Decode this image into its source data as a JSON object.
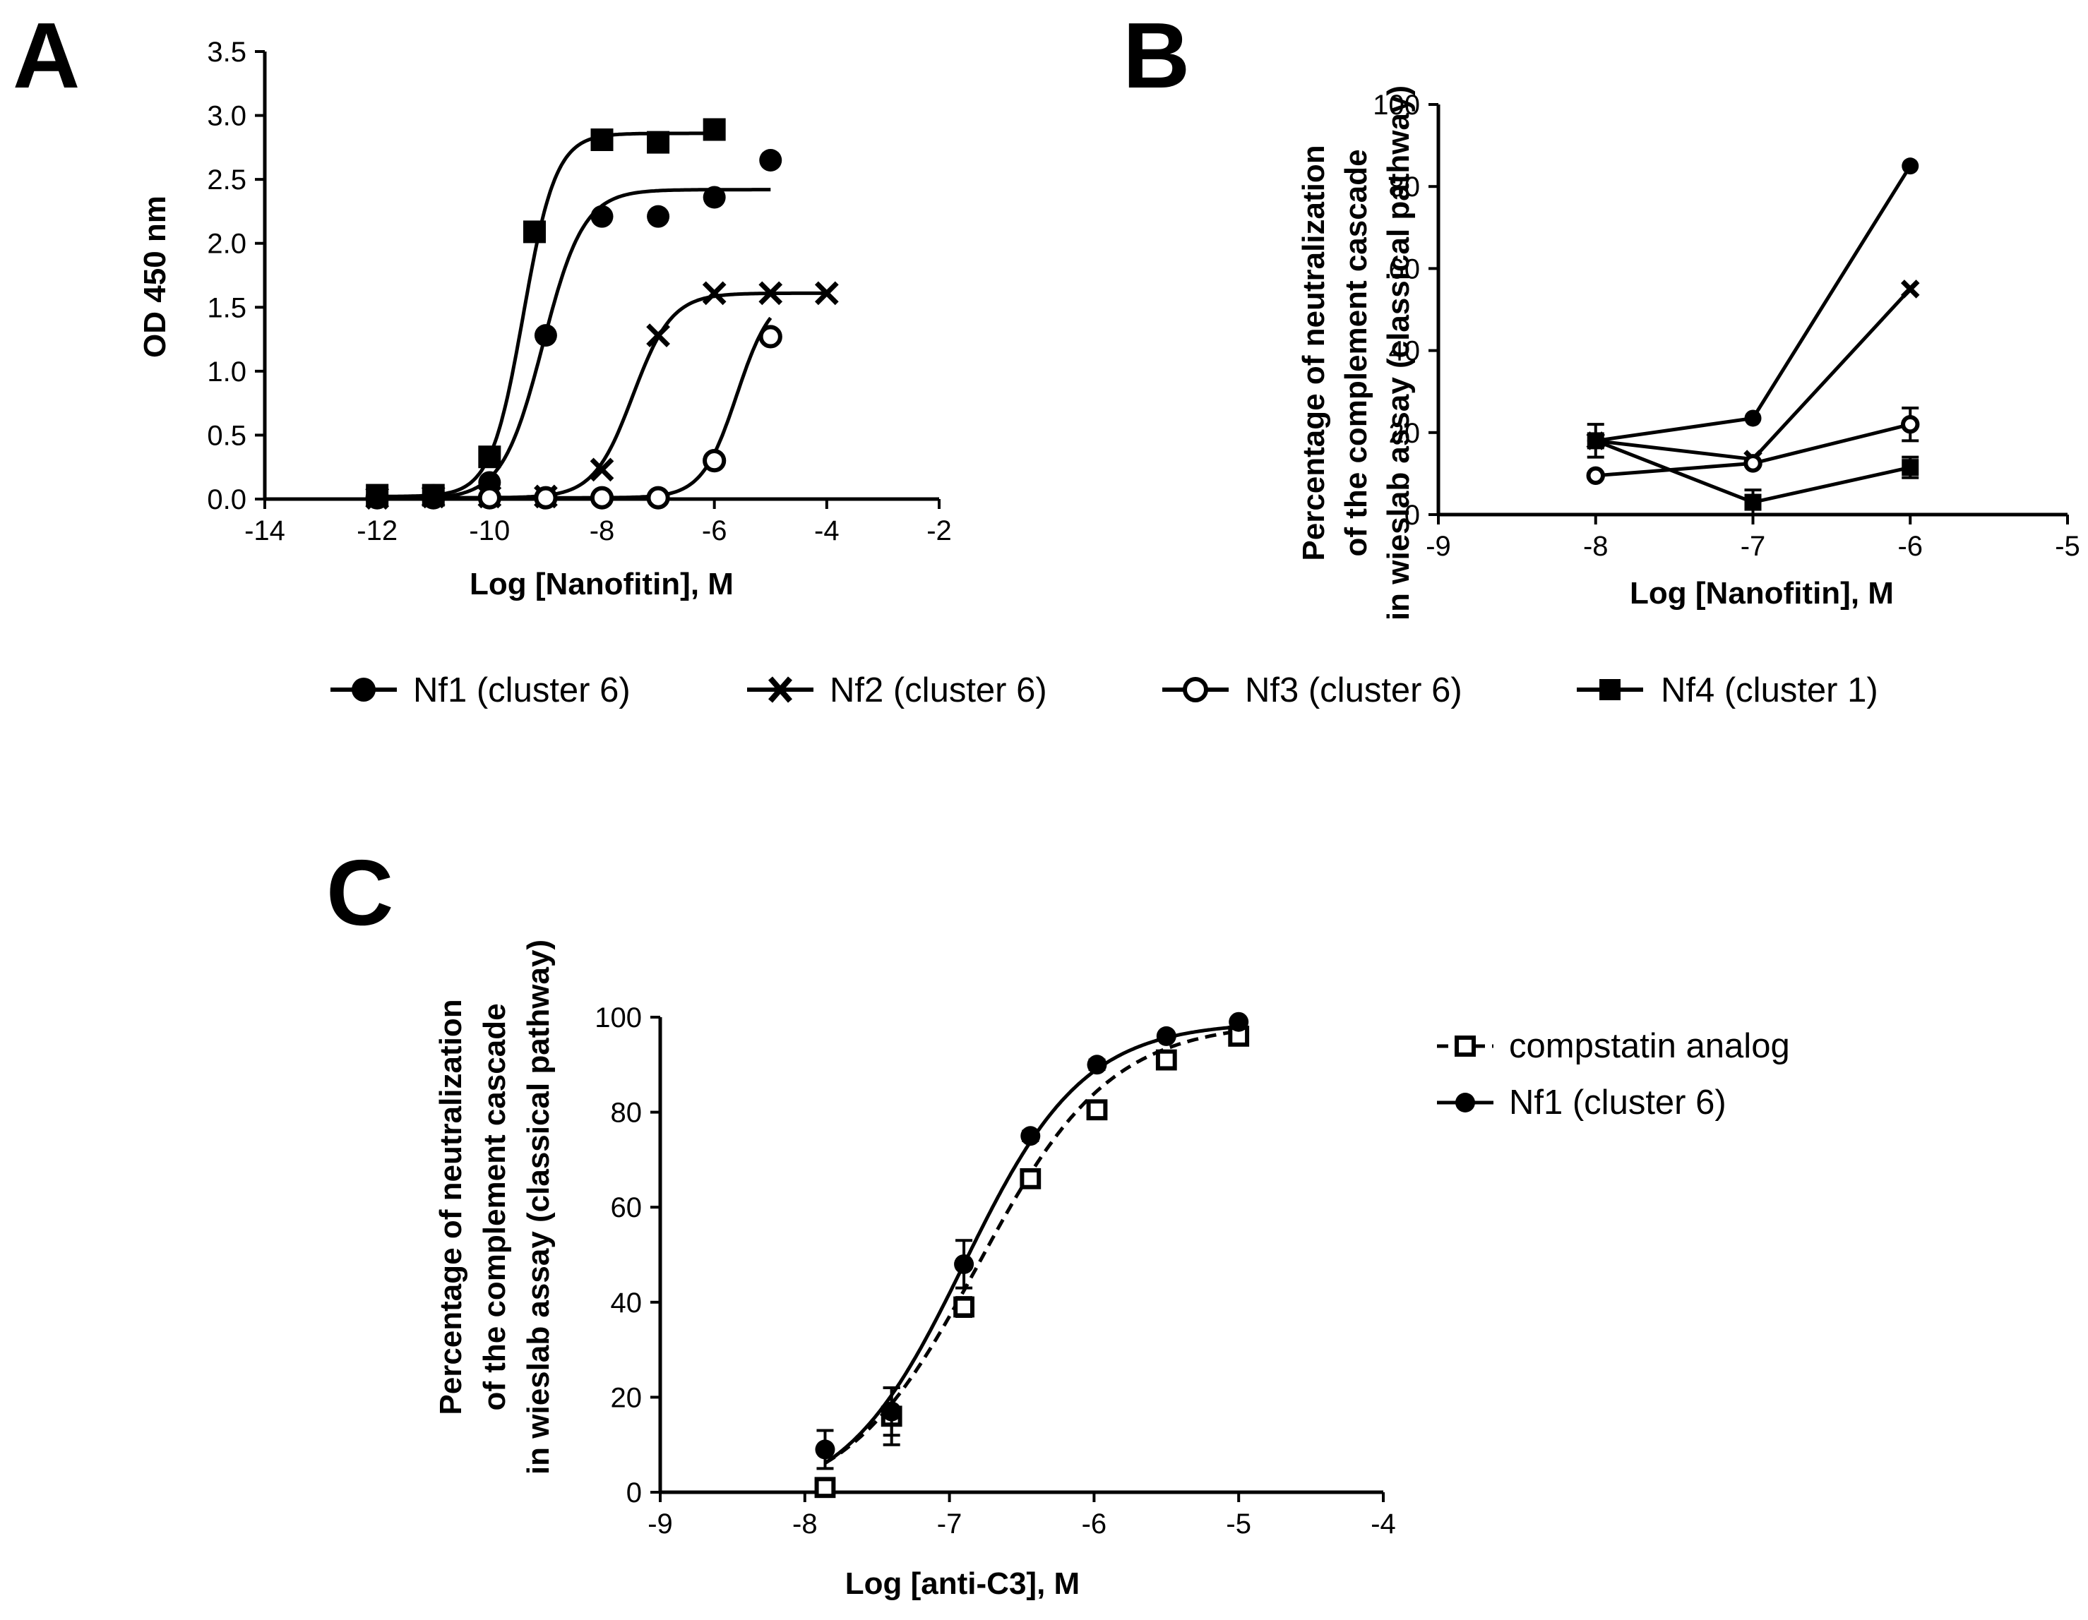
{
  "figure": {
    "panel_labels": [
      "A",
      "B",
      "C"
    ],
    "shared_legend": [
      {
        "label": "Nf1 (cluster 6)",
        "marker": "filled-circle"
      },
      {
        "label": "Nf2 (cluster 6)",
        "marker": "x-cross"
      },
      {
        "label": "Nf3 (cluster 6)",
        "marker": "open-circle"
      },
      {
        "label": "Nf4 (cluster 1)",
        "marker": "filled-square"
      }
    ]
  },
  "chart_data": [
    {
      "panel": "A",
      "type": "scatter",
      "fit": "sigmoidal-dose-response",
      "title": "",
      "xlabel": "Log [Nanofitin], M",
      "ylabel": "OD 450 nm",
      "xlim": [
        -14,
        -2
      ],
      "ylim": [
        0,
        3.5
      ],
      "xticks": [
        -14,
        -12,
        -10,
        -8,
        -6,
        -4,
        -2
      ],
      "yticks": [
        0.0,
        0.5,
        1.0,
        1.5,
        2.0,
        2.5,
        3.0,
        3.5
      ],
      "xtick_labels": [
        "-14",
        "-12",
        "-10",
        "-8",
        "-6",
        "-4",
        "-2"
      ],
      "ytick_labels": [
        "0.0",
        "0.5",
        "1.0",
        "1.5",
        "2.0",
        "2.5",
        "3.0",
        "3.5"
      ],
      "series": [
        {
          "name": "Nf1 (cluster 6)",
          "marker": "filled-circle",
          "x": [
            -12,
            -11,
            -10,
            -9,
            -8,
            -7,
            -6,
            -5
          ],
          "y": [
            0.02,
            0.03,
            0.13,
            1.28,
            2.21,
            2.21,
            2.36,
            2.65
          ],
          "fit_params": {
            "bottom": 0.0,
            "top": 2.42,
            "log_ec50": -9.05,
            "hill": 1.2,
            "x_range": [
              -12,
              -5
            ]
          }
        },
        {
          "name": "Nf2 (cluster 6)",
          "marker": "x-cross",
          "x": [
            -12,
            -11,
            -10,
            -9,
            -8,
            -7,
            -6,
            -5,
            -4
          ],
          "y": [
            0.01,
            0.02,
            0.02,
            0.02,
            0.23,
            1.28,
            1.61,
            1.61,
            1.61
          ],
          "fit_params": {
            "bottom": 0.01,
            "top": 1.61,
            "log_ec50": -7.45,
            "hill": 1.25,
            "x_range": [
              -12,
              -4
            ]
          }
        },
        {
          "name": "Nf3 (cluster 6)",
          "marker": "open-circle",
          "x": [
            -12,
            -11,
            -10,
            -9,
            -8,
            -7,
            -6,
            -5
          ],
          "y": [
            0.01,
            0.01,
            0.01,
            0.01,
            0.01,
            0.01,
            0.3,
            1.27
          ],
          "fit_params": {
            "bottom": 0.01,
            "top": 1.62,
            "log_ec50": -5.6,
            "hill": 1.4,
            "x_range": [
              -12,
              -5
            ]
          }
        },
        {
          "name": "Nf4 (cluster 1)",
          "marker": "filled-square",
          "x": [
            -12,
            -11,
            -10,
            -9.2,
            -8,
            -7,
            -6
          ],
          "y": [
            0.03,
            0.03,
            0.33,
            2.09,
            2.81,
            2.79,
            2.89
          ],
          "fit_params": {
            "bottom": 0.02,
            "top": 2.86,
            "log_ec50": -9.4,
            "hill": 1.5,
            "x_range": [
              -12,
              -6
            ]
          }
        }
      ]
    },
    {
      "panel": "B",
      "type": "line",
      "title": "",
      "xlabel": "Log [Nanofitin], M",
      "ylabel_lines": [
        "Percentage of neutralization",
        "of the complement cascade",
        "in wieslab assay (classical pathway)"
      ],
      "xlim": [
        -9,
        -5
      ],
      "ylim": [
        0,
        100
      ],
      "xticks": [
        -9,
        -8,
        -7,
        -6,
        -5
      ],
      "yticks": [
        0,
        20,
        40,
        60,
        80,
        100
      ],
      "xtick_labels": [
        "-9",
        "-8",
        "-7",
        "-6",
        "-5"
      ],
      "ytick_labels": [
        "0",
        "20",
        "40",
        "60",
        "80",
        "100"
      ],
      "series": [
        {
          "name": "Nf1 (cluster 6)",
          "marker": "filled-circle",
          "x": [
            -8,
            -7,
            -6
          ],
          "y": [
            18,
            23.5,
            85
          ],
          "err": [
            0,
            0,
            0
          ]
        },
        {
          "name": "Nf2 (cluster 6)",
          "marker": "x-cross",
          "x": [
            -8,
            -7,
            -6
          ],
          "y": [
            18,
            13.5,
            55
          ],
          "err": [
            0,
            0,
            0
          ]
        },
        {
          "name": "Nf3 (cluster 6)",
          "marker": "open-circle",
          "x": [
            -8,
            -7,
            -6
          ],
          "y": [
            9.5,
            12.5,
            22
          ],
          "err": [
            0,
            0,
            4
          ]
        },
        {
          "name": "Nf4 (cluster 1)",
          "marker": "filled-square",
          "x": [
            -8,
            -7,
            -6
          ],
          "y": [
            18,
            3,
            11.5
          ],
          "err": [
            4,
            3,
            2.5
          ]
        }
      ]
    },
    {
      "panel": "C",
      "type": "scatter",
      "fit": "sigmoidal-dose-response",
      "title": "",
      "xlabel": "Log [anti-C3], M",
      "ylabel_lines": [
        "Percentage of neutralization",
        "of the complement cascade",
        "in wieslab assay (classical pathway)"
      ],
      "xlim": [
        -9,
        -4
      ],
      "ylim": [
        0,
        100
      ],
      "xticks": [
        -9,
        -8,
        -7,
        -6,
        -5,
        -4
      ],
      "yticks": [
        0,
        20,
        40,
        60,
        80,
        100
      ],
      "xtick_labels": [
        "-9",
        "-8",
        "-7",
        "-6",
        "-5",
        "-4"
      ],
      "ytick_labels": [
        "0",
        "20",
        "40",
        "60",
        "80",
        "100"
      ],
      "legend": [
        {
          "label": "compstatin analog",
          "marker": "open-square",
          "line": "dashed"
        },
        {
          "label": "Nf1 (cluster 6)",
          "marker": "filled-circle",
          "line": "solid"
        }
      ],
      "series": [
        {
          "name": "compstatin analog",
          "marker": "open-square",
          "line": "dashed",
          "x": [
            -7.86,
            -7.4,
            -6.9,
            -6.44,
            -5.98,
            -5.5,
            -5.0
          ],
          "y": [
            1,
            16,
            39,
            66,
            80.5,
            91,
            96
          ],
          "err": [
            1,
            6,
            2,
            1.5,
            1.5,
            1,
            1
          ],
          "fit_params": {
            "bottom": -3,
            "top": 99,
            "log_ec50": -6.8,
            "hill": 0.95,
            "x_range": [
              -7.86,
              -5.0
            ]
          }
        },
        {
          "name": "Nf1 (cluster 6)",
          "marker": "filled-circle",
          "line": "solid",
          "x": [
            -7.86,
            -7.4,
            -6.9,
            -6.44,
            -5.98,
            -5.5,
            -5.0
          ],
          "y": [
            9,
            17,
            48,
            75,
            90,
            96,
            99
          ],
          "err": [
            4,
            5,
            5,
            1,
            1,
            0.5,
            0.5
          ],
          "fit_params": {
            "bottom": -3,
            "top": 99,
            "log_ec50": -6.9,
            "hill": 1.05,
            "x_range": [
              -7.86,
              -5.0
            ]
          }
        }
      ]
    }
  ]
}
